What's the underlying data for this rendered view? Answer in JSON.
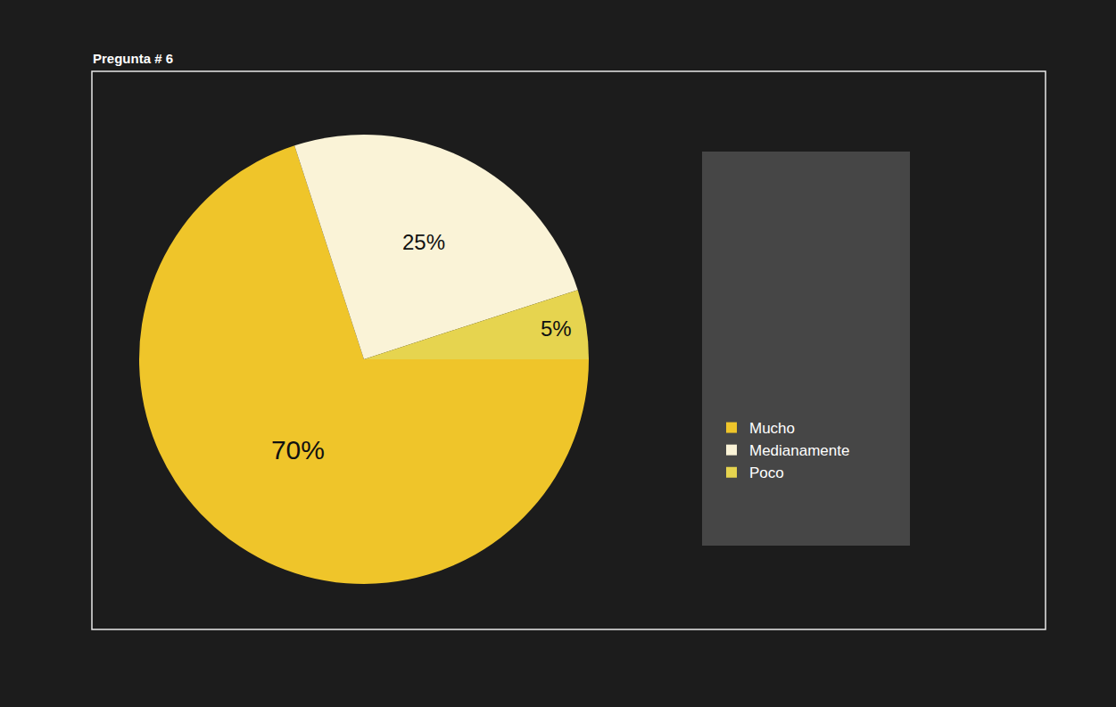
{
  "chart_data": {
    "type": "pie",
    "title": "Pregunta # 6",
    "categories": [
      "Mucho",
      "Medianamente",
      "Poco"
    ],
    "values": [
      70,
      25,
      5
    ],
    "value_labels": [
      "70%",
      "25%",
      "5%"
    ],
    "colors": [
      "#efc52a",
      "#faf3d7",
      "#e6d44f"
    ],
    "data_labels": true,
    "legend": "right"
  }
}
